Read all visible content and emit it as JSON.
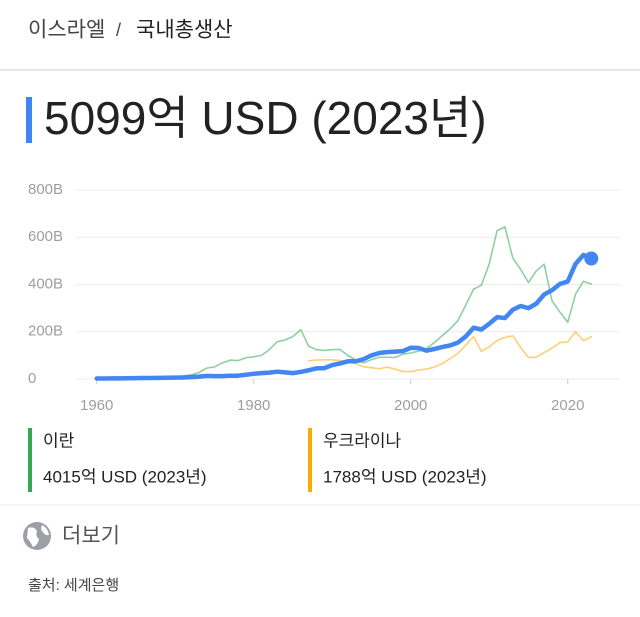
{
  "breadcrumb": {
    "country": "이스라엘",
    "separator": "/",
    "topic": "국내총생산"
  },
  "headline": "5099억 USD (2023년)",
  "chart_data": {
    "type": "line",
    "x": [
      1960,
      1961,
      1962,
      1963,
      1964,
      1965,
      1966,
      1967,
      1968,
      1969,
      1970,
      1971,
      1972,
      1973,
      1974,
      1975,
      1976,
      1977,
      1978,
      1979,
      1980,
      1981,
      1982,
      1983,
      1984,
      1985,
      1986,
      1987,
      1988,
      1989,
      1990,
      1991,
      1992,
      1993,
      1994,
      1995,
      1996,
      1997,
      1998,
      1999,
      2000,
      2001,
      2002,
      2003,
      2004,
      2005,
      2006,
      2007,
      2008,
      2009,
      2010,
      2011,
      2012,
      2013,
      2014,
      2015,
      2016,
      2017,
      2018,
      2019,
      2020,
      2021,
      2022,
      2023
    ],
    "series": [
      {
        "color": "#4285f4",
        "values": [
          2,
          2.3,
          2.4,
          2.8,
          3.2,
          3.7,
          4,
          4.1,
          4.6,
          5.3,
          5.6,
          6.3,
          7.8,
          10,
          13,
          12,
          12,
          14,
          14,
          18,
          22,
          25,
          27,
          31,
          28,
          25,
          30,
          37,
          45,
          46,
          59,
          66,
          75,
          75,
          84,
          100,
          110,
          114,
          116,
          118,
          132,
          131,
          120,
          127,
          135,
          142,
          154,
          180,
          217,
          209,
          234,
          262,
          258,
          293,
          309,
          300,
          319,
          358,
          376,
          402,
          413,
          488,
          525,
          510
        ]
      },
      {
        "name": "이란",
        "summary": "4015억 USD (2023년)",
        "color": "#34a853",
        "values": [
          4.2,
          4.4,
          4.7,
          4.9,
          5.4,
          6.2,
          6.6,
          7.3,
          8.3,
          9.3,
          10.6,
          13.2,
          17.4,
          27,
          46,
          51,
          68,
          80,
          78,
          90,
          94,
          100,
          125,
          158,
          165,
          180,
          209,
          139,
          124,
          121,
          124,
          125,
          99,
          81,
          68,
          82,
          92,
          92,
          91,
          105,
          110,
          118,
          129,
          154,
          183,
          212,
          247,
          312,
          380,
          397,
          487,
          628,
          644,
          512,
          464,
          408,
          458,
          486,
          331,
          283,
          240,
          360,
          414,
          402
        ]
      },
      {
        "name": "우크라이나",
        "summary": "1788억 USD (2023년)",
        "color": "#f9ab00",
        "values": [
          null,
          null,
          null,
          null,
          null,
          null,
          null,
          null,
          null,
          null,
          null,
          null,
          null,
          null,
          null,
          null,
          null,
          null,
          null,
          null,
          null,
          null,
          null,
          null,
          null,
          null,
          null,
          77,
          80,
          81,
          81,
          78,
          73,
          65,
          52,
          48,
          44,
          50,
          42,
          32,
          31,
          38,
          42,
          50,
          65,
          86,
          108,
          143,
          180,
          117,
          136,
          163,
          176,
          183,
          133,
          91,
          93,
          112,
          131,
          154,
          157,
          200,
          162,
          179
        ]
      }
    ],
    "xlim": [
      1958,
      2025
    ],
    "xticks": [
      1960,
      1980,
      2000,
      2020
    ],
    "ylim": [
      0,
      800
    ],
    "yticks": [
      0,
      {
        "value": 200,
        "label": "200B"
      },
      {
        "value": 400,
        "label": "400B"
      },
      {
        "value": 600,
        "label": "600B"
      },
      {
        "value": 800,
        "label": "800B"
      }
    ],
    "grid": true
  },
  "more": "더보기",
  "source": "출처: 세계은행"
}
